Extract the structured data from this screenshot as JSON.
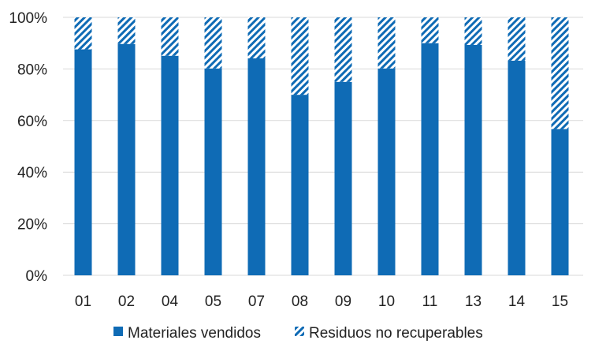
{
  "chart_data": {
    "type": "bar",
    "stacked": "percent",
    "categories": [
      "01",
      "02",
      "04",
      "05",
      "07",
      "08",
      "09",
      "10",
      "11",
      "13",
      "14",
      "15"
    ],
    "series": [
      {
        "name": "Materiales vendidos",
        "values": [
          87.6,
          89.7,
          85.1,
          80.2,
          84.1,
          70.0,
          75.0,
          80.2,
          90.0,
          89.3,
          83.2,
          56.7
        ],
        "color": "#0f6bb5",
        "pattern": "solid"
      },
      {
        "name": "Residuos no recuperables",
        "values": [
          12.4,
          10.3,
          14.9,
          19.8,
          15.9,
          30.0,
          25.0,
          19.8,
          10.0,
          10.7,
          16.8,
          43.3
        ],
        "color": "#0f6bb5",
        "pattern": "diagonal-hatch"
      }
    ],
    "yticks": [
      "0%",
      "20%",
      "40%",
      "60%",
      "80%",
      "100%"
    ],
    "ylim": [
      0,
      100
    ],
    "grid": true,
    "legend": "bottom"
  }
}
